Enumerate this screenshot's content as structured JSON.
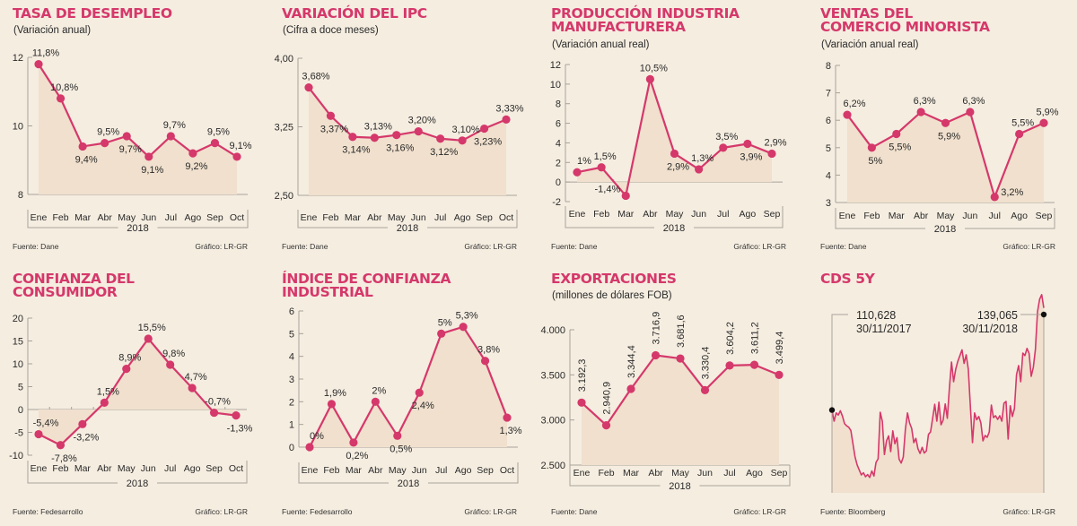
{
  "colors": {
    "line": "#d5386b",
    "fill": "#f0e0cd",
    "axis": "#a9a29a",
    "background": "#f5ede0",
    "text": "#2a2a2a",
    "marker_cds": "#111111"
  },
  "chart_data": [
    {
      "id": "desempleo",
      "type": "area",
      "title": "TASA DE DESEMPLEO",
      "subtitle": "(Variación anual)",
      "categories": [
        "Ene",
        "Feb",
        "Mar",
        "Abr",
        "May",
        "Jun",
        "Jul",
        "Ago",
        "Sep",
        "Oct"
      ],
      "values": [
        11.8,
        10.8,
        9.4,
        9.5,
        9.7,
        9.1,
        9.7,
        9.2,
        9.5,
        9.1
      ],
      "labels": [
        "11,8%",
        "10,8%",
        "9,4%",
        "9,5%",
        "9,7%",
        "9,1%",
        "9,7%",
        "9,2%",
        "9,5%",
        "9,1%"
      ],
      "label_pos": [
        "above",
        "above",
        "below",
        "above",
        "below",
        "below",
        "above",
        "below",
        "above",
        "above"
      ],
      "yticks": [
        8,
        10,
        12
      ],
      "ytick_labels": [
        "8",
        "10",
        "12"
      ],
      "ylim": [
        8,
        12
      ],
      "xlabel": "2018",
      "source": "Fuente: Dane",
      "credit": "Gráfico: LR-GR"
    },
    {
      "id": "ipc",
      "type": "area",
      "title": "VARIACIÓN DEL IPC",
      "subtitle": "(Cifra a doce meses)",
      "categories": [
        "Ene",
        "Feb",
        "Mar",
        "Abr",
        "May",
        "Jun",
        "Jul",
        "Ago",
        "Sep",
        "Oct"
      ],
      "values": [
        3.68,
        3.37,
        3.14,
        3.13,
        3.16,
        3.2,
        3.12,
        3.1,
        3.23,
        3.33
      ],
      "labels": [
        "3,68%",
        "3,37%",
        "3,14%",
        "3,13%",
        "3,16%",
        "3,20%",
        "3,12%",
        "3,10%",
        "3,23%",
        "3,33%"
      ],
      "label_pos": [
        "above",
        "below",
        "below",
        "above",
        "below",
        "above",
        "below",
        "above",
        "below",
        "above"
      ],
      "yticks": [
        2.5,
        3.25,
        4.0
      ],
      "ytick_labels": [
        "2,50",
        "3,25",
        "4,00"
      ],
      "ylim": [
        2.5,
        4.0
      ],
      "xlabel": "2018",
      "source": "Fuente: Dane",
      "credit": "Gráfico: LR-GR"
    },
    {
      "id": "produccion",
      "type": "area",
      "title": "PRODUCCIÓN INDUSTRIA\nMANUFACTURERA",
      "subtitle": "(Variación anual real)",
      "categories": [
        "Ene",
        "Feb",
        "Mar",
        "Abr",
        "May",
        "Jun",
        "Jul",
        "Ago",
        "Sep"
      ],
      "values": [
        1.0,
        1.5,
        -1.4,
        10.5,
        2.9,
        1.3,
        3.5,
        3.9,
        2.9
      ],
      "labels": [
        "1%",
        "1,5%",
        "-1,4%",
        "10,5%",
        "2,9%",
        "1,3%",
        "3,5%",
        "3,9%",
        "2,9%"
      ],
      "label_pos": [
        "above",
        "above",
        "left",
        "above",
        "below",
        "above",
        "above",
        "below",
        "above"
      ],
      "yticks": [
        -2,
        0,
        2,
        4,
        6,
        8,
        10,
        12
      ],
      "ytick_labels": [
        "-2",
        "0",
        "2",
        "4",
        "6",
        "8",
        "10",
        "12"
      ],
      "ylim": [
        -2,
        12
      ],
      "xlabel": "2018",
      "source": "Fuente: Dane",
      "credit": "Gráfico: LR-GR"
    },
    {
      "id": "ventas",
      "type": "area",
      "title": "VENTAS DEL\nCOMERCIO MINORISTA",
      "subtitle": "(Variación anual real)",
      "categories": [
        "Ene",
        "Feb",
        "Mar",
        "Abr",
        "May",
        "Jun",
        "Jul",
        "Ago",
        "Sep"
      ],
      "values": [
        6.2,
        5.0,
        5.5,
        6.3,
        5.9,
        6.3,
        3.2,
        5.5,
        5.9
      ],
      "labels": [
        "6,2%",
        "5%",
        "5,5%",
        "6,3%",
        "5,9%",
        "6,3%",
        "3,2%",
        "5,5%",
        "5,9%"
      ],
      "label_pos": [
        "above",
        "below",
        "below",
        "above",
        "below",
        "above",
        "right",
        "above",
        "above"
      ],
      "yticks": [
        3,
        4,
        5,
        6,
        7,
        8
      ],
      "ytick_labels": [
        "3",
        "4",
        "5",
        "6",
        "7",
        "8"
      ],
      "ylim": [
        3,
        8
      ],
      "xlabel": "2018",
      "source": "Fuente: Dane",
      "credit": "Gráfico: LR-GR"
    },
    {
      "id": "confianza-consumidor",
      "type": "area",
      "title": "CONFIANZA DEL\nCONSUMIDOR",
      "subtitle": "",
      "categories": [
        "Ene",
        "Feb",
        "Mar",
        "Abr",
        "May",
        "Jun",
        "Jul",
        "Ago",
        "Sep",
        "Oct"
      ],
      "values": [
        -5.4,
        -7.8,
        -3.2,
        1.5,
        8.9,
        15.5,
        9.8,
        4.7,
        -0.7,
        -1.3
      ],
      "labels": [
        "-5,4%",
        "-7,8%",
        "-3,2%",
        "1,5%",
        "8,9%",
        "15,5%",
        "9,8%",
        "4,7%",
        "-0,7%",
        "-1,3%"
      ],
      "label_pos": [
        "above",
        "below",
        "below",
        "above",
        "above",
        "above",
        "above",
        "above",
        "above",
        "below"
      ],
      "yticks": [
        -10,
        -5,
        0,
        5,
        10,
        15,
        20
      ],
      "ytick_labels": [
        "-10",
        "-5",
        "0",
        "5",
        "10",
        "15",
        "20"
      ],
      "ylim": [
        -10,
        20
      ],
      "xlabel": "2018",
      "source": "Fuente: Fedesarrollo",
      "credit": "Gráfico: LR-GR"
    },
    {
      "id": "confianza-industrial",
      "type": "area",
      "title": "ÍNDICE DE CONFIANZA\nINDUSTRIAL",
      "subtitle": "",
      "categories": [
        "Ene",
        "Feb",
        "Mar",
        "Abr",
        "May",
        "Jun",
        "Jul",
        "Ago",
        "Sep",
        "Oct"
      ],
      "values": [
        0,
        1.9,
        0.2,
        2.0,
        0.5,
        2.4,
        5.0,
        5.3,
        3.8,
        1.3
      ],
      "labels": [
        "0%",
        "1,9%",
        "0,2%",
        "2%",
        "0,5%",
        "2,4%",
        "5%",
        "5,3%",
        "3,8%",
        "1,3%"
      ],
      "label_pos": [
        "above",
        "above",
        "below",
        "above",
        "below",
        "below",
        "above",
        "above",
        "above",
        "below"
      ],
      "yticks": [
        0,
        1,
        2,
        3,
        4,
        5,
        6
      ],
      "ytick_labels": [
        "0",
        "1",
        "2",
        "3",
        "4",
        "5",
        "6"
      ],
      "ylim": [
        0,
        6
      ],
      "xlabel": "2018",
      "source": "Fuente: Fedesarrollo",
      "credit": "Gráfico: LR-GR"
    },
    {
      "id": "exportaciones",
      "type": "area",
      "title": "EXPORTACIONES",
      "subtitle": "(millones de dólares FOB)",
      "categories": [
        "Ene",
        "Feb",
        "Mar",
        "Abr",
        "May",
        "Jun",
        "Jul",
        "Ago",
        "Sep"
      ],
      "values": [
        3192.3,
        2940.9,
        3344.4,
        3716.9,
        3681.6,
        3330.4,
        3604.2,
        3611.2,
        3499.4
      ],
      "labels": [
        "3.192,3",
        "2.940,9",
        "3.344,4",
        "3.716,9",
        "3.681,6",
        "3.330,4",
        "3.604,2",
        "3.611,2",
        "3.499,4"
      ],
      "label_pos": [
        "vertical",
        "vertical",
        "vertical",
        "vertical",
        "vertical",
        "vertical",
        "vertical",
        "vertical",
        "vertical"
      ],
      "yticks": [
        2500,
        3000,
        3500,
        4000
      ],
      "ytick_labels": [
        "2.500",
        "3.000",
        "3.500",
        "4.000"
      ],
      "ylim": [
        2500,
        4000
      ],
      "xlabel": "2018",
      "source": "Fuente: Dane",
      "credit": "Gráfico: LR-GR"
    },
    {
      "id": "cds",
      "type": "area",
      "title": "CDS 5Y",
      "subtitle": "",
      "start": {
        "value": "110,628",
        "date": "30/11/2017"
      },
      "end": {
        "value": "139,065",
        "date": "30/11/2018"
      },
      "x_range": [
        "30/11/2017",
        "30/11/2018"
      ],
      "approx_values": [
        110.6,
        107.5,
        109.8,
        109.2,
        110.4,
        108.9,
        106.8,
        106.2,
        105.8,
        104.9,
        101.2,
        97.5,
        95.3,
        93.9,
        92.5,
        93.1,
        92.0,
        92.6,
        91.8,
        93.6,
        92.2,
        96.0,
        97.0,
        110.0,
        107.5,
        98.2,
        102.0,
        103.4,
        99.0,
        104.8,
        101.2,
        102.9,
        96.9,
        95.8,
        97.5,
        105.2,
        109.8,
        107.0,
        105.5,
        101.5,
        102.7,
        99.8,
        98.5,
        100.2,
        98.6,
        99.2,
        103.8,
        104.5,
        108.3,
        112.2,
        107.5,
        112.8,
        106.5,
        107.8,
        112.3,
        108.3,
        116.8,
        124.0,
        118.5,
        122.0,
        124.2,
        125.8,
        127.4,
        123.6,
        126.0,
        122.0,
        111.5,
        101.5,
        109.8,
        107.9,
        108.8,
        107.0,
        102.0,
        103.5,
        103.0,
        104.5,
        112.0,
        108.5,
        109.0,
        108.0,
        109.0,
        107.5,
        112.5,
        113.0,
        102.5,
        111.8,
        108.8,
        111.0,
        120.5,
        123.0,
        118.5,
        126.5,
        125.8,
        127.8,
        126.4,
        120.0,
        122.5,
        127.5,
        138.0,
        141.5,
        142.8,
        139.1
      ],
      "source": "Fuente: Bloomberg",
      "credit": "Gráfico: LR-GR"
    }
  ]
}
